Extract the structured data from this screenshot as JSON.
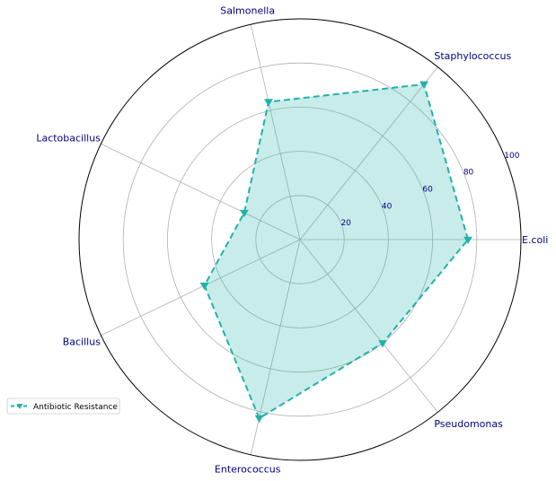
{
  "chart_data": {
    "type": "radar",
    "categories": [
      "E.coli",
      "Staphylococcus",
      "Salmonella",
      "Lactobacillus",
      "Bacillus",
      "Enterococcus",
      "Pseudomonas"
    ],
    "series": [
      {
        "name": "Antibiotic Resistance",
        "values": [
          76,
          90,
          64,
          28,
          48,
          83,
          60
        ],
        "line_color": "#20b2aa",
        "fill_color": "#20b2aa",
        "line_style": "dashed",
        "marker": "triangle-down"
      }
    ],
    "rlim": [
      0,
      100
    ],
    "r_ticks": [
      20,
      40,
      60,
      80,
      100
    ],
    "r_tick_labels": [
      "20",
      "40",
      "60",
      "80",
      "100"
    ],
    "grid": true,
    "legend_position": "lower-left",
    "label_color": "#000080"
  }
}
